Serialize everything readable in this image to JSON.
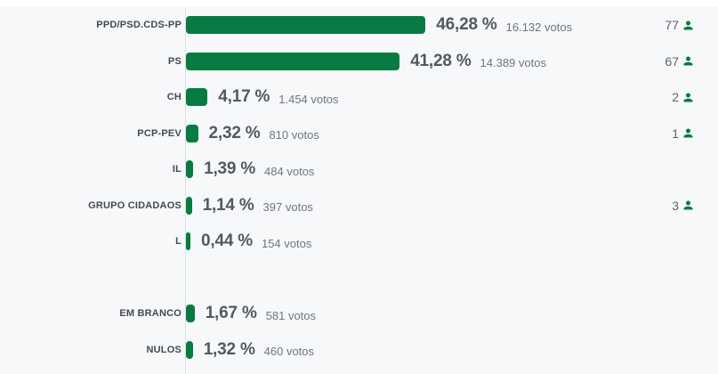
{
  "chart_data": {
    "type": "bar",
    "orientation": "horizontal",
    "title": "",
    "value_unit": "%",
    "bar_color": "#077b41",
    "background_color": "#f7f8fa",
    "axis": {
      "baseline": 0,
      "gridlines": false
    },
    "legend": null,
    "rows": [
      {
        "party": "PPD/PSD.CDS-PP",
        "percent": 46.28,
        "percent_label": "46,28 %",
        "votes": 16132,
        "votes_label": "16.132 votos",
        "seats": 77
      },
      {
        "party": "PS",
        "percent": 41.28,
        "percent_label": "41,28 %",
        "votes": 14389,
        "votes_label": "14.389 votos",
        "seats": 67
      },
      {
        "party": "CH",
        "percent": 4.17,
        "percent_label": "4,17 %",
        "votes": 1454,
        "votes_label": "1.454 votos",
        "seats": 2
      },
      {
        "party": "PCP-PEV",
        "percent": 2.32,
        "percent_label": "2,32 %",
        "votes": 810,
        "votes_label": "810 votos",
        "seats": 1
      },
      {
        "party": "IL",
        "percent": 1.39,
        "percent_label": "1,39 %",
        "votes": 484,
        "votes_label": "484 votos",
        "seats": null
      },
      {
        "party": "GRUPO CIDADAOS",
        "percent": 1.14,
        "percent_label": "1,14 %",
        "votes": 397,
        "votes_label": "397 votos",
        "seats": 3
      },
      {
        "party": "L",
        "percent": 0.44,
        "percent_label": "0,44 %",
        "votes": 154,
        "votes_label": "154 votos",
        "seats": null
      },
      {
        "party": "EM BRANCO",
        "percent": 1.67,
        "percent_label": "1,67 %",
        "votes": 581,
        "votes_label": "581 votos",
        "seats": null
      },
      {
        "party": "NULOS",
        "percent": 1.32,
        "percent_label": "1,32 %",
        "votes": 460,
        "votes_label": "460 votos",
        "seats": null
      }
    ]
  }
}
